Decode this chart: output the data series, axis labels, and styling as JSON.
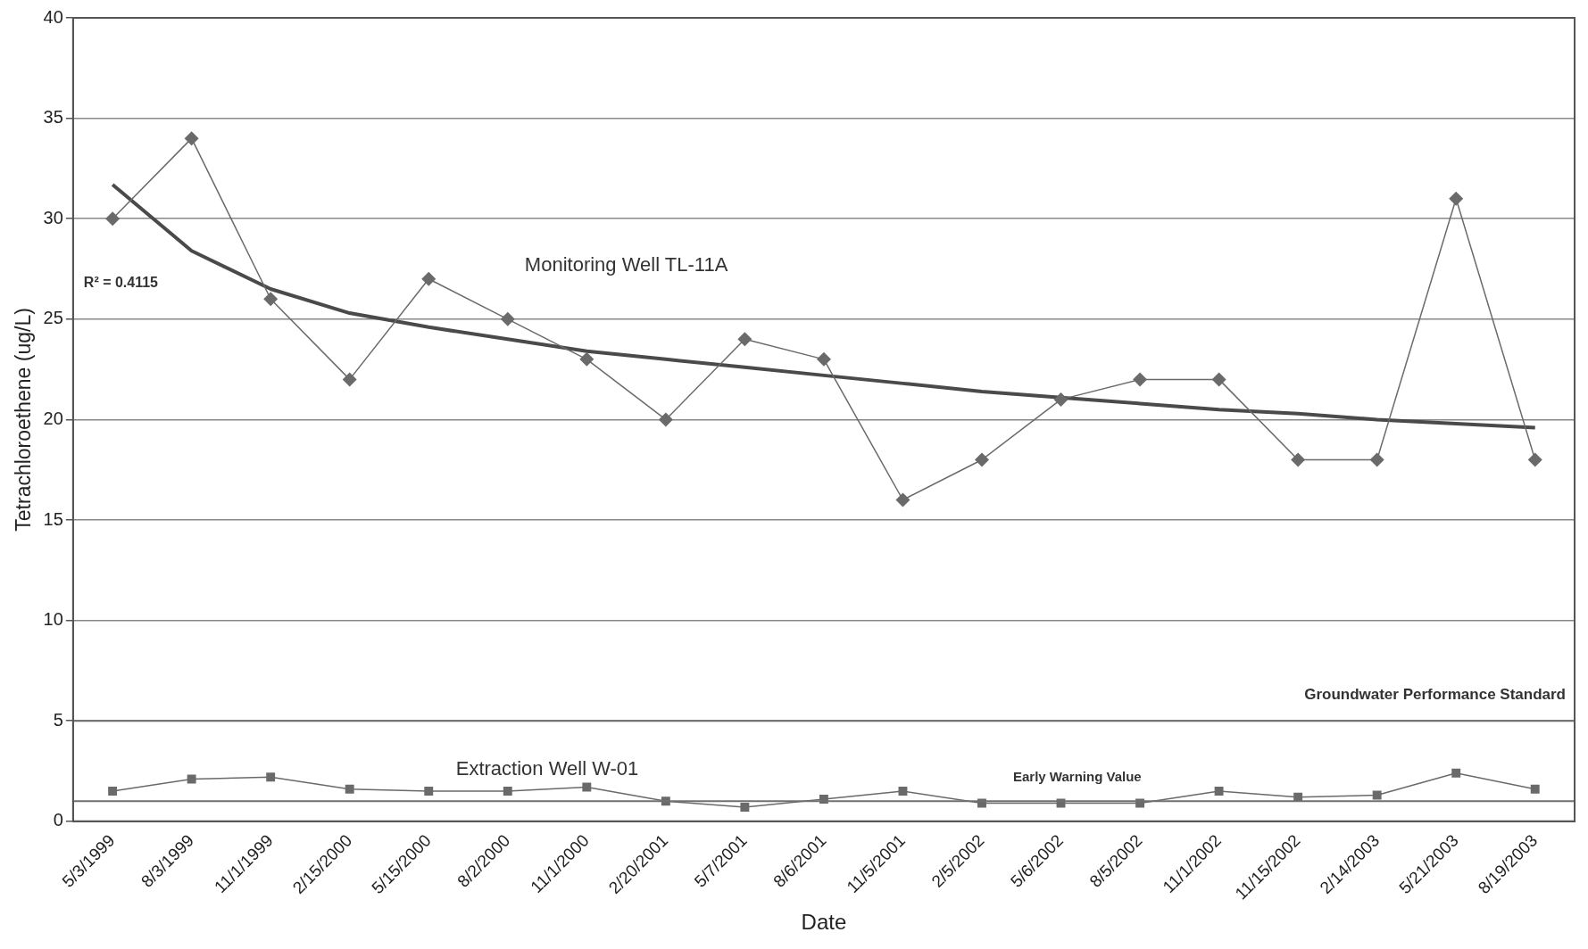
{
  "chart_data": {
    "type": "line",
    "xlabel": "Date",
    "ylabel": "Tetrachloroethene (ug/L)",
    "categories": [
      "5/3/1999",
      "8/3/1999",
      "11/1/1999",
      "2/15/2000",
      "5/15/2000",
      "8/2/2000",
      "11/1/2000",
      "2/20/2001",
      "5/7/2001",
      "8/6/2001",
      "11/5/2001",
      "2/5/2002",
      "5/6/2002",
      "8/5/2002",
      "11/1/2002",
      "11/15/2002",
      "2/14/2003",
      "5/21/2003",
      "8/19/2003"
    ],
    "series": [
      {
        "name": "Monitoring Well TL-11A",
        "color": "#6a6a6a",
        "marker": "diamond",
        "values": [
          30,
          34,
          26,
          22,
          27,
          25,
          23,
          20,
          24,
          23,
          16,
          18,
          21,
          22,
          22,
          18,
          18,
          31,
          18
        ]
      },
      {
        "name": "Extraction Well W-01",
        "color": "#6a6a6a",
        "marker": "square",
        "values": [
          1.5,
          2.1,
          2.2,
          1.6,
          1.5,
          1.5,
          1.7,
          1.0,
          0.7,
          1.1,
          1.5,
          0.9,
          0.9,
          0.9,
          1.5,
          1.2,
          1.3,
          2.4,
          1.6
        ]
      },
      {
        "color": "#4a4a4a",
        "marker": "none",
        "values": [
          31.7,
          28.4,
          26.5,
          25.3,
          24.6,
          24.0,
          23.4,
          23.0,
          22.6,
          22.2,
          21.8,
          21.4,
          21.1,
          20.8,
          20.5,
          20.3,
          20.0,
          19.8,
          19.6
        ]
      }
    ],
    "ylim": [
      0,
      40
    ],
    "yticks": [
      0,
      5,
      10,
      15,
      20,
      25,
      30,
      35,
      40
    ],
    "grid": "y",
    "legend": false,
    "line_style": "solid",
    "ref_lines": [
      {
        "axis": "y",
        "value": 5,
        "label": "Groundwater Performance Standard",
        "color": "#707070"
      },
      {
        "axis": "y",
        "value": 1,
        "label": "Early Warning Value",
        "color": "#707070"
      }
    ],
    "annotations": [
      "R² = 0.4115"
    ]
  }
}
